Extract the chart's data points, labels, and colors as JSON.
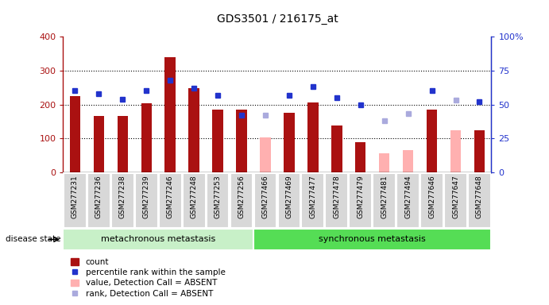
{
  "title": "GDS3501 / 216175_at",
  "samples": [
    "GSM277231",
    "GSM277236",
    "GSM277238",
    "GSM277239",
    "GSM277246",
    "GSM277248",
    "GSM277253",
    "GSM277256",
    "GSM277466",
    "GSM277469",
    "GSM277477",
    "GSM277478",
    "GSM277479",
    "GSM277481",
    "GSM277494",
    "GSM277646",
    "GSM277647",
    "GSM277648"
  ],
  "group1_count": 8,
  "group1_label": "metachronous metastasis",
  "group2_label": "synchronous metastasis",
  "bar_values": [
    225,
    165,
    165,
    203,
    340,
    248,
    185,
    185,
    null,
    175,
    205,
    138,
    90,
    null,
    null,
    185,
    null,
    125
  ],
  "bar_values_absent": [
    null,
    null,
    null,
    null,
    null,
    null,
    null,
    null,
    102,
    null,
    null,
    null,
    null,
    55,
    65,
    null,
    125,
    null
  ],
  "rank_values": [
    60,
    58,
    54,
    60,
    68,
    62,
    57,
    42,
    null,
    57,
    63,
    55,
    50,
    null,
    null,
    60,
    null,
    52
  ],
  "rank_values_absent": [
    null,
    null,
    null,
    null,
    null,
    null,
    null,
    null,
    42,
    null,
    null,
    null,
    null,
    38,
    43,
    null,
    53,
    null
  ],
  "ylim_left": [
    0,
    400
  ],
  "ylim_right": [
    0,
    100
  ],
  "yticks_left": [
    0,
    100,
    200,
    300,
    400
  ],
  "yticks_right": [
    0,
    25,
    50,
    75,
    100
  ],
  "ytick_labels_left": [
    "0",
    "100",
    "200",
    "300",
    "400"
  ],
  "ytick_labels_right": [
    "0",
    "25",
    "50",
    "75",
    "100%"
  ],
  "bar_color": "#aa1111",
  "bar_color_absent": "#ffb0b0",
  "rank_color": "#2233cc",
  "rank_color_absent": "#aaaadd",
  "group1_bg": "#c8f0c8",
  "group2_bg": "#55dd55",
  "sample_bg": "#d8d8d8",
  "legend_items": [
    "count",
    "percentile rank within the sample",
    "value, Detection Call = ABSENT",
    "rank, Detection Call = ABSENT"
  ],
  "legend_colors": [
    "#aa1111",
    "#2233cc",
    "#ffb0b0",
    "#aaaadd"
  ],
  "disease_state_label": "disease state"
}
